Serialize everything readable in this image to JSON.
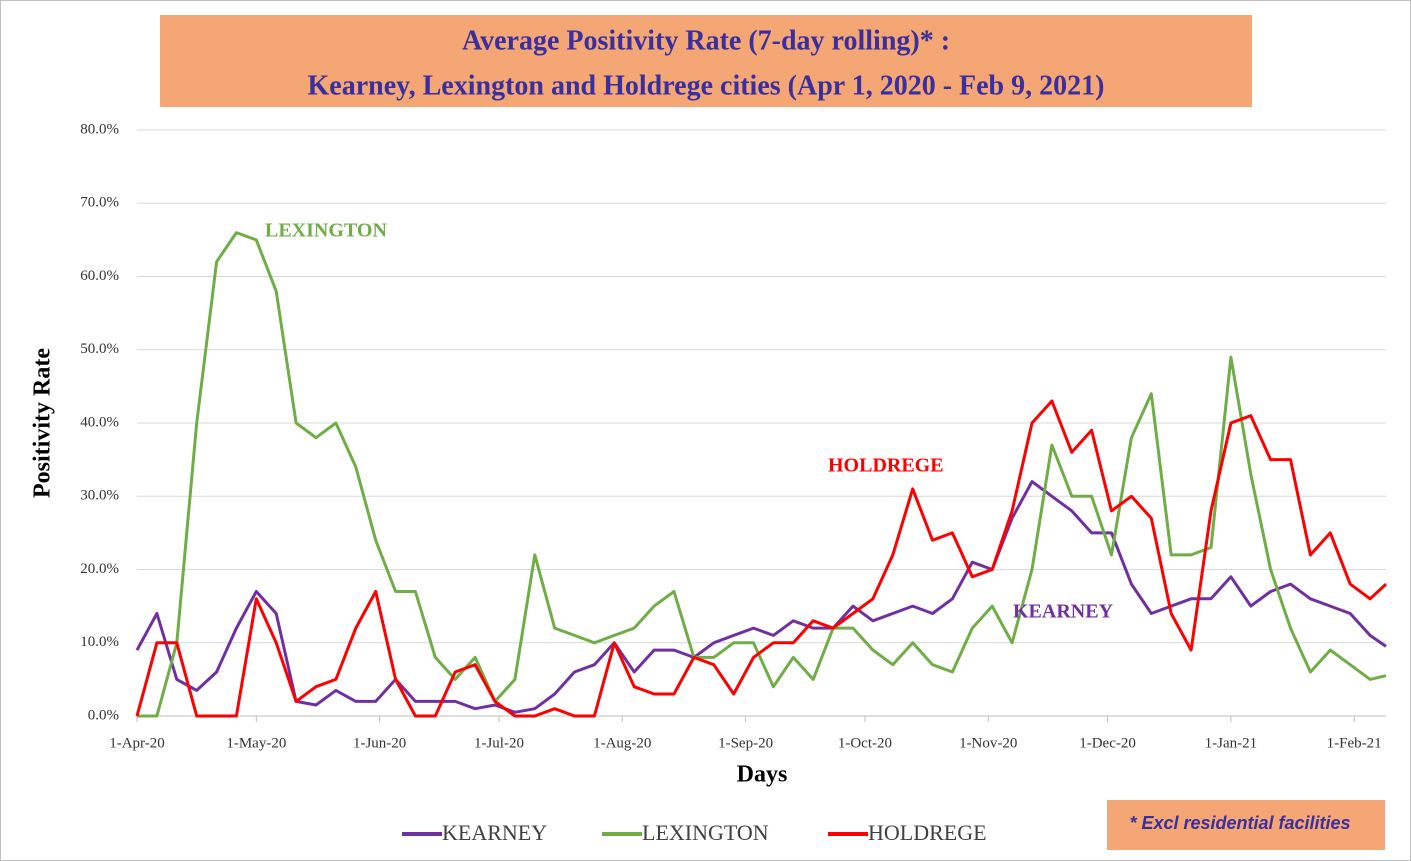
{
  "chart_data": {
    "type": "line",
    "title": [
      "Average Positivity Rate (7-day rolling)* :",
      "Kearney, Lexington and Holdrege cities (Apr 1, 2020 - Feb 9, 2021)"
    ],
    "x_label": "Days",
    "y_label": "Positivity Rate",
    "x": [
      "2020-04-01",
      "2020-04-06",
      "2020-04-11",
      "2020-04-16",
      "2020-04-21",
      "2020-04-26",
      "2020-05-01",
      "2020-05-06",
      "2020-05-11",
      "2020-05-16",
      "2020-05-21",
      "2020-05-26",
      "2020-05-31",
      "2020-06-05",
      "2020-06-10",
      "2020-06-15",
      "2020-06-20",
      "2020-06-25",
      "2020-06-30",
      "2020-07-05",
      "2020-07-10",
      "2020-07-15",
      "2020-07-20",
      "2020-07-25",
      "2020-07-30",
      "2020-08-04",
      "2020-08-09",
      "2020-08-14",
      "2020-08-19",
      "2020-08-24",
      "2020-08-29",
      "2020-09-03",
      "2020-09-08",
      "2020-09-13",
      "2020-09-18",
      "2020-09-23",
      "2020-09-28",
      "2020-10-03",
      "2020-10-08",
      "2020-10-13",
      "2020-10-18",
      "2020-10-23",
      "2020-10-28",
      "2020-11-02",
      "2020-11-07",
      "2020-11-12",
      "2020-11-17",
      "2020-11-22",
      "2020-11-27",
      "2020-12-02",
      "2020-12-07",
      "2020-12-12",
      "2020-12-17",
      "2020-12-22",
      "2020-12-27",
      "2021-01-01",
      "2021-01-06",
      "2021-01-11",
      "2021-01-16",
      "2021-01-21",
      "2021-01-26",
      "2021-01-31",
      "2021-02-05",
      "2021-02-09"
    ],
    "series": [
      {
        "name": "KEARNEY",
        "color": "#7030a0",
        "values": [
          9,
          14,
          5,
          3.5,
          6,
          12,
          17,
          14,
          2,
          1.5,
          3.5,
          2,
          2,
          5,
          2,
          2,
          2,
          1,
          1.5,
          0.5,
          1,
          3,
          6,
          7,
          10,
          6,
          9,
          9,
          8,
          10,
          11,
          12,
          11,
          13,
          12,
          12,
          15,
          13,
          14,
          15,
          14,
          16,
          21,
          20,
          27,
          32,
          30,
          28,
          25,
          25,
          18,
          14,
          15,
          16,
          16,
          19,
          15,
          17,
          18,
          16,
          15,
          14,
          11,
          9.5
        ]
      },
      {
        "name": "LEXINGTON",
        "color": "#70ad47",
        "values": [
          0,
          0,
          10,
          40,
          62,
          66,
          65,
          58,
          40,
          38,
          40,
          34,
          24,
          17,
          17,
          8,
          5,
          8,
          2,
          5,
          22,
          12,
          11,
          10,
          11,
          12,
          15,
          17,
          8,
          8,
          10,
          10,
          4,
          8,
          5,
          12,
          12,
          9,
          7,
          10,
          7,
          6,
          12,
          15,
          10,
          20,
          37,
          30,
          30,
          22,
          38,
          44,
          22,
          22,
          23,
          49,
          33,
          20,
          12,
          6,
          9,
          7,
          5,
          5.5
        ]
      },
      {
        "name": "HOLDREGE",
        "color": "#ff0000",
        "values": [
          0,
          10,
          10,
          0,
          0,
          0,
          16,
          10,
          2,
          4,
          5,
          12,
          17,
          5,
          0,
          0,
          6,
          7,
          2,
          0,
          0,
          1,
          0,
          0,
          10,
          4,
          3,
          3,
          8,
          7,
          3,
          8,
          10,
          10,
          13,
          12,
          14,
          16,
          22,
          31,
          24,
          25,
          19,
          20,
          28,
          40,
          43,
          36,
          39,
          28,
          30,
          27,
          14,
          9,
          28,
          40,
          41,
          35,
          35,
          22,
          25,
          18,
          16,
          18
        ]
      }
    ],
    "annotations": [
      {
        "text": "LEXINGTON",
        "color": "#70ad47"
      },
      {
        "text": "HOLDREGE",
        "color": "#ff0000"
      },
      {
        "text": "KEARNEY",
        "color": "#7030a0"
      }
    ],
    "footnote": "* Excl residential facilities",
    "xlim": [
      "2020-04-01",
      "2021-02-09"
    ],
    "xticks": [
      {
        "value": "2020-04-01",
        "label": "1-Apr-20"
      },
      {
        "value": "2020-05-01",
        "label": "1-May-20"
      },
      {
        "value": "2020-06-01",
        "label": "1-Jun-20"
      },
      {
        "value": "2020-07-01",
        "label": "1-Jul-20"
      },
      {
        "value": "2020-08-01",
        "label": "1-Aug-20"
      },
      {
        "value": "2020-09-01",
        "label": "1-Sep-20"
      },
      {
        "value": "2020-10-01",
        "label": "1-Oct-20"
      },
      {
        "value": "2020-11-01",
        "label": "1-Nov-20"
      },
      {
        "value": "2020-12-01",
        "label": "1-Dec-20"
      },
      {
        "value": "2021-01-01",
        "label": "1-Jan-21"
      },
      {
        "value": "2021-02-01",
        "label": "1-Feb-21"
      }
    ],
    "ylim": [
      0,
      80
    ],
    "yticks": [
      {
        "value": 0,
        "label": "0.0%"
      },
      {
        "value": 10,
        "label": "10.0%"
      },
      {
        "value": 20,
        "label": "20.0%"
      },
      {
        "value": 30,
        "label": "30.0%"
      },
      {
        "value": 40,
        "label": "40.0%"
      },
      {
        "value": 50,
        "label": "50.0%"
      },
      {
        "value": 60,
        "label": "60.0%"
      },
      {
        "value": 70,
        "label": "70.0%"
      },
      {
        "value": 80,
        "label": "80.0%"
      }
    ],
    "grid": true,
    "legend": "bottom"
  }
}
